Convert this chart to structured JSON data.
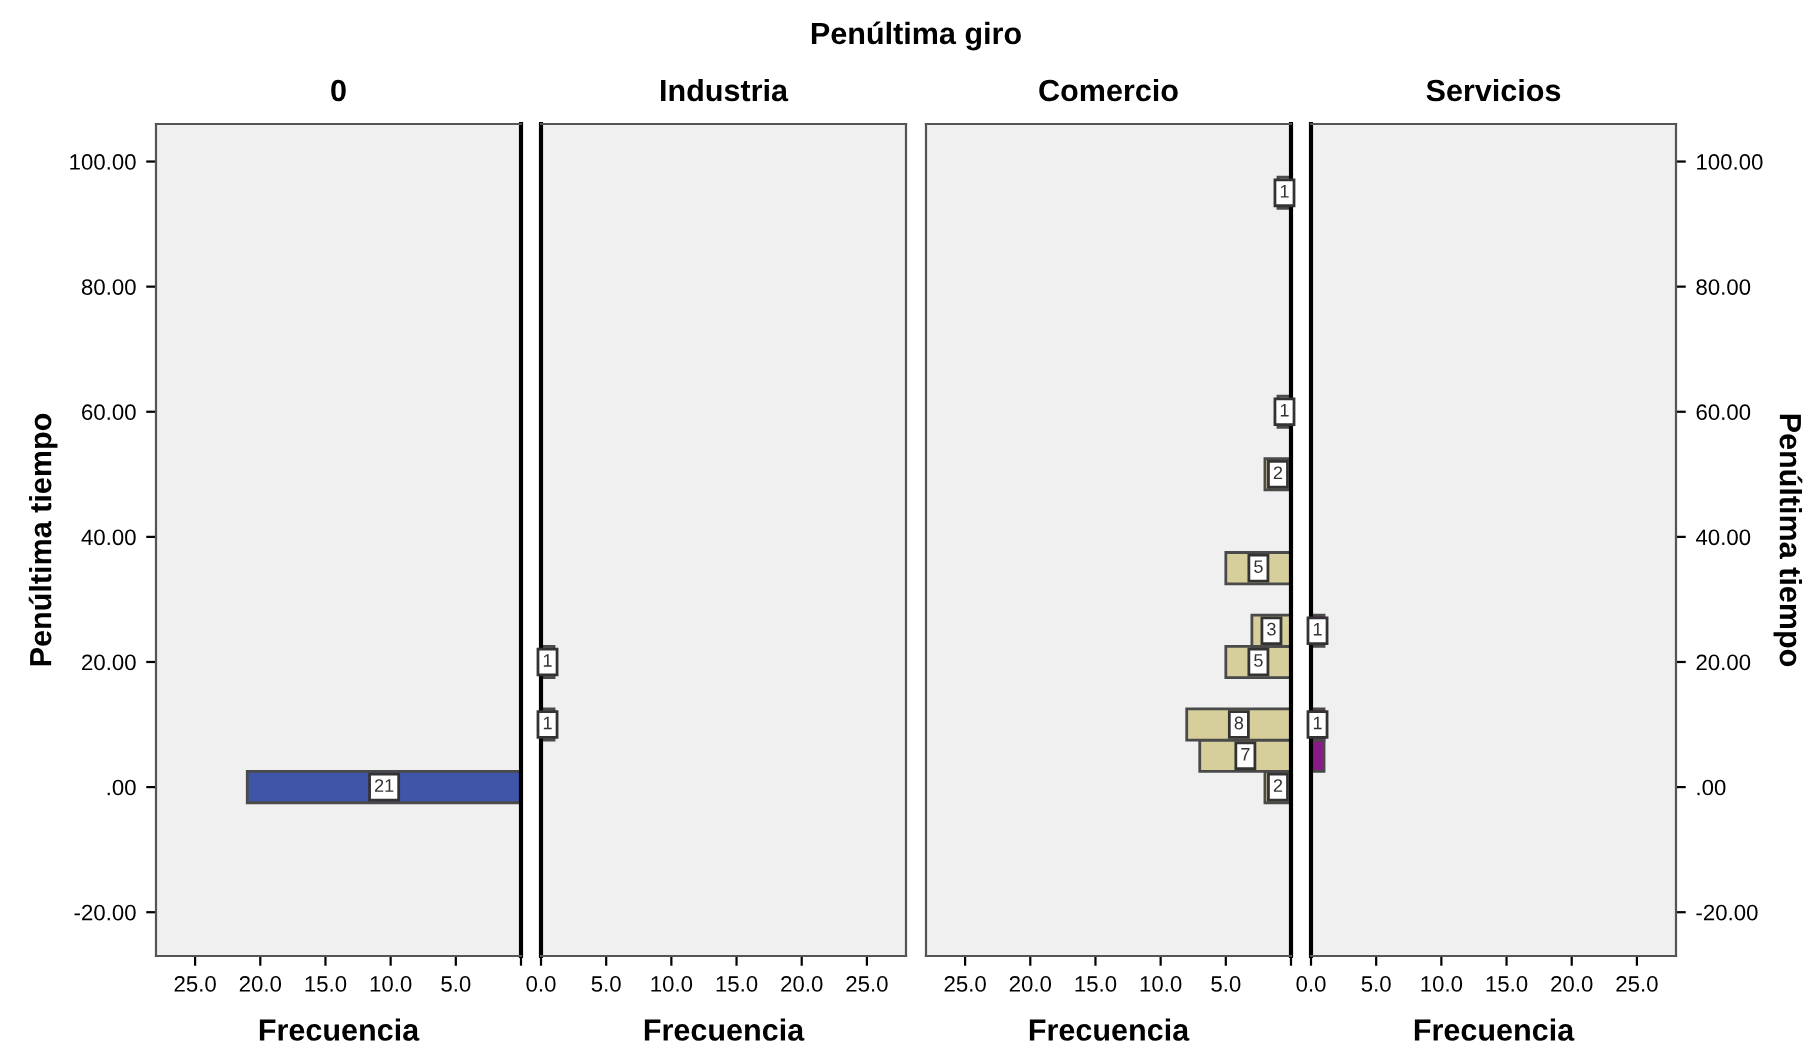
{
  "chart_data": [
    {
      "type": "histogram",
      "orientation": "horizontal",
      "title": "0",
      "xlabel": "Frecuencia",
      "ylabel": "Penúltima tiempo",
      "annotations": [
        "Penúltima giro"
      ],
      "color": "#3f55a8",
      "bins": [
        -2.5,
        2.5,
        7.5,
        12.5,
        17.5,
        22.5,
        27.5,
        32.5,
        37.5,
        42.5,
        47.5,
        52.5,
        57.5,
        62.5,
        67.5,
        72.5,
        77.5,
        82.5,
        87.5,
        92.5,
        97.5
      ],
      "values": [
        21,
        0,
        0,
        0,
        0,
        0,
        0,
        0,
        0,
        0,
        0,
        0,
        0,
        0,
        0,
        0,
        0,
        0,
        0,
        0
      ],
      "value_labels": [
        "21",
        null,
        null,
        null,
        null,
        null,
        null,
        null,
        null,
        null,
        null,
        null,
        null,
        null,
        null,
        null,
        null,
        null,
        null,
        null
      ],
      "xlim": [
        28,
        0
      ],
      "xticks": [
        {
          "value": 25,
          "label": "25.0"
        },
        {
          "value": 20,
          "label": "20.0"
        },
        {
          "value": 15,
          "label": "15.0"
        },
        {
          "value": 10,
          "label": "10.0"
        },
        {
          "value": 5,
          "label": "5.0"
        },
        {
          "value": 0,
          "label": null
        }
      ],
      "ylim": [
        -27,
        106
      ],
      "yticks": [
        {
          "value": -20,
          "label": "-20.00"
        },
        {
          "value": 0,
          "label": ".00"
        },
        {
          "value": 20,
          "label": "20.00"
        },
        {
          "value": 40,
          "label": "40.00"
        },
        {
          "value": 60,
          "label": "60.00"
        },
        {
          "value": 80,
          "label": "80.00"
        },
        {
          "value": 100,
          "label": "100.00"
        }
      ]
    },
    {
      "type": "histogram",
      "orientation": "horizontal",
      "title": "Industria",
      "xlabel": "Frecuencia",
      "color": "#62a857",
      "tick_labels": "x",
      "bins": [
        -2.5,
        2.5,
        7.5,
        12.5,
        17.5,
        22.5,
        27.5,
        32.5,
        37.5,
        42.5,
        47.5,
        52.5,
        57.5,
        62.5,
        67.5,
        72.5,
        77.5,
        82.5,
        87.5,
        92.5,
        97.5
      ],
      "values": [
        0,
        0,
        1,
        0,
        1,
        0,
        0,
        0,
        0,
        0,
        0,
        0,
        0,
        0,
        0,
        0,
        0,
        0,
        0,
        0
      ],
      "value_labels": [
        null,
        null,
        "1",
        null,
        "1",
        null,
        null,
        null,
        null,
        null,
        null,
        null,
        null,
        null,
        null,
        null,
        null,
        null,
        null,
        null
      ],
      "xlim": [
        0,
        28
      ],
      "xticks": [
        {
          "value": 0,
          "label": "0.0"
        },
        {
          "value": 5,
          "label": "5.0"
        },
        {
          "value": 10,
          "label": "10.0"
        },
        {
          "value": 15,
          "label": "15.0"
        },
        {
          "value": 20,
          "label": "20.0"
        },
        {
          "value": 25,
          "label": "25.0"
        }
      ],
      "ylim": [
        -27,
        106
      ]
    },
    {
      "type": "histogram",
      "orientation": "horizontal",
      "title": "Comercio",
      "xlabel": "Frecuencia",
      "color": "#d6cf9c",
      "tick_labels": "x",
      "bins": [
        -2.5,
        2.5,
        7.5,
        12.5,
        17.5,
        22.5,
        27.5,
        32.5,
        37.5,
        42.5,
        47.5,
        52.5,
        57.5,
        62.5,
        67.5,
        72.5,
        77.5,
        82.5,
        87.5,
        92.5,
        97.5
      ],
      "values": [
        2,
        7,
        8,
        0,
        5,
        3,
        0,
        5,
        0,
        0,
        2,
        0,
        1,
        0,
        0,
        0,
        0,
        0,
        0,
        1
      ],
      "value_labels": [
        "2",
        "7",
        "8",
        null,
        "5",
        "3",
        null,
        "5",
        null,
        null,
        "2",
        null,
        "1",
        null,
        null,
        null,
        null,
        null,
        null,
        "1"
      ],
      "xlim": [
        28,
        0
      ],
      "xticks": [
        {
          "value": 25,
          "label": "25.0"
        },
        {
          "value": 20,
          "label": "20.0"
        },
        {
          "value": 15,
          "label": "15.0"
        },
        {
          "value": 10,
          "label": "10.0"
        },
        {
          "value": 5,
          "label": "5.0"
        },
        {
          "value": 0,
          "label": null
        }
      ],
      "ylim": [
        -27,
        106
      ]
    },
    {
      "type": "histogram",
      "orientation": "horizontal",
      "title": "Servicios",
      "xlabel": "Frecuencia",
      "ylabel": "Penúltima tiempo",
      "color": "#8b1a89",
      "bins": [
        -2.5,
        2.5,
        7.5,
        12.5,
        17.5,
        22.5,
        27.5,
        32.5,
        37.5,
        42.5,
        47.5,
        52.5,
        57.5,
        62.5,
        67.5,
        72.5,
        77.5,
        82.5,
        87.5,
        92.5,
        97.5
      ],
      "values": [
        0,
        1,
        1,
        0,
        0,
        1,
        0,
        0,
        0,
        0,
        0,
        0,
        0,
        0,
        0,
        0,
        0,
        0,
        0,
        0
      ],
      "value_labels": [
        null,
        null,
        "1",
        null,
        null,
        "1",
        null,
        null,
        null,
        null,
        null,
        null,
        null,
        null,
        null,
        null,
        null,
        null,
        null,
        null
      ],
      "xlim": [
        0,
        28
      ],
      "xticks": [
        {
          "value": 0,
          "label": "0.0"
        },
        {
          "value": 5,
          "label": "5.0"
        },
        {
          "value": 10,
          "label": "10.0"
        },
        {
          "value": 15,
          "label": "15.0"
        },
        {
          "value": 20,
          "label": "20.0"
        },
        {
          "value": 25,
          "label": "25.0"
        }
      ],
      "ylim": [
        -27,
        106
      ],
      "yticks": [
        {
          "value": -20,
          "label": "-20.00"
        },
        {
          "value": 0,
          "label": ".00"
        },
        {
          "value": 20,
          "label": "20.00"
        },
        {
          "value": 40,
          "label": "40.00"
        },
        {
          "value": 60,
          "label": "60.00"
        },
        {
          "value": 80,
          "label": "80.00"
        },
        {
          "value": 100,
          "label": "100.00"
        }
      ]
    }
  ]
}
